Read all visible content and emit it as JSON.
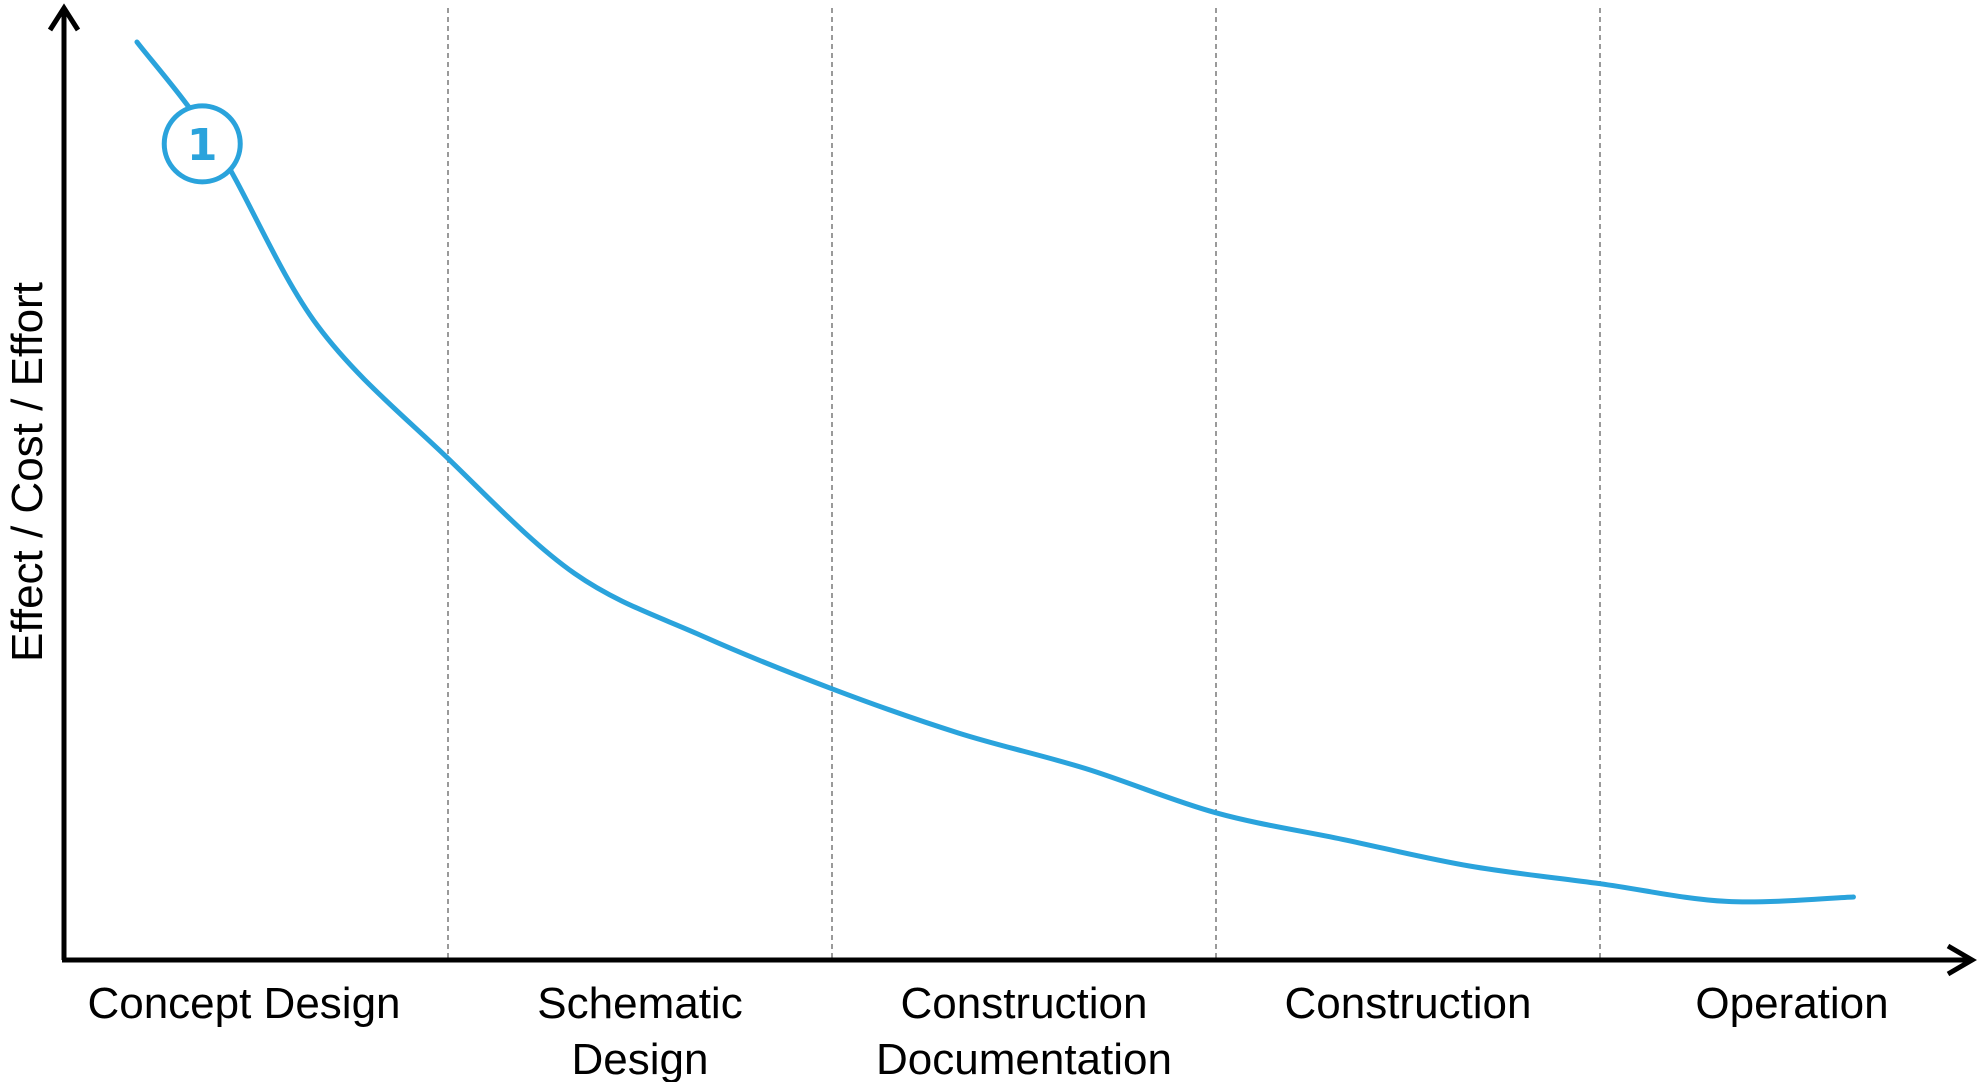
{
  "chart_data": {
    "type": "line",
    "title": "",
    "xlabel": "",
    "ylabel": "Effect / Cost / Effort",
    "categories": [
      "Concept Design",
      "Schematic Design",
      "Construction Documentation",
      "Construction",
      "Operation"
    ],
    "category_lines": [
      [
        "Concept Design"
      ],
      [
        "Schematic",
        "Design"
      ],
      [
        "Construction",
        "Documentation"
      ],
      [
        "Construction"
      ],
      [
        "Operation"
      ]
    ],
    "x_unit": "project phase index (0 = start of Concept Design, 5 = end of Operation)",
    "xlim": [
      0,
      5
    ],
    "ylim": [
      0,
      100
    ],
    "y_ticks_shown": false,
    "grid": "vertical dashed dividers between phases",
    "series": [
      {
        "color": "#2aa3dc",
        "x": [
          0.19,
          0.4,
          0.66,
          1.0,
          1.33,
          1.66,
          2.0,
          2.33,
          2.66,
          3.0,
          3.33,
          3.66,
          4.0,
          4.33,
          4.66
        ],
        "y": [
          100,
          88,
          68,
          53,
          40,
          33,
          27,
          22,
          18,
          13,
          10,
          7,
          5,
          3,
          3.5
        ]
      }
    ],
    "annotations": [
      {
        "text": "1",
        "x": 0.36,
        "y": 88.5,
        "style": "circled"
      }
    ]
  }
}
